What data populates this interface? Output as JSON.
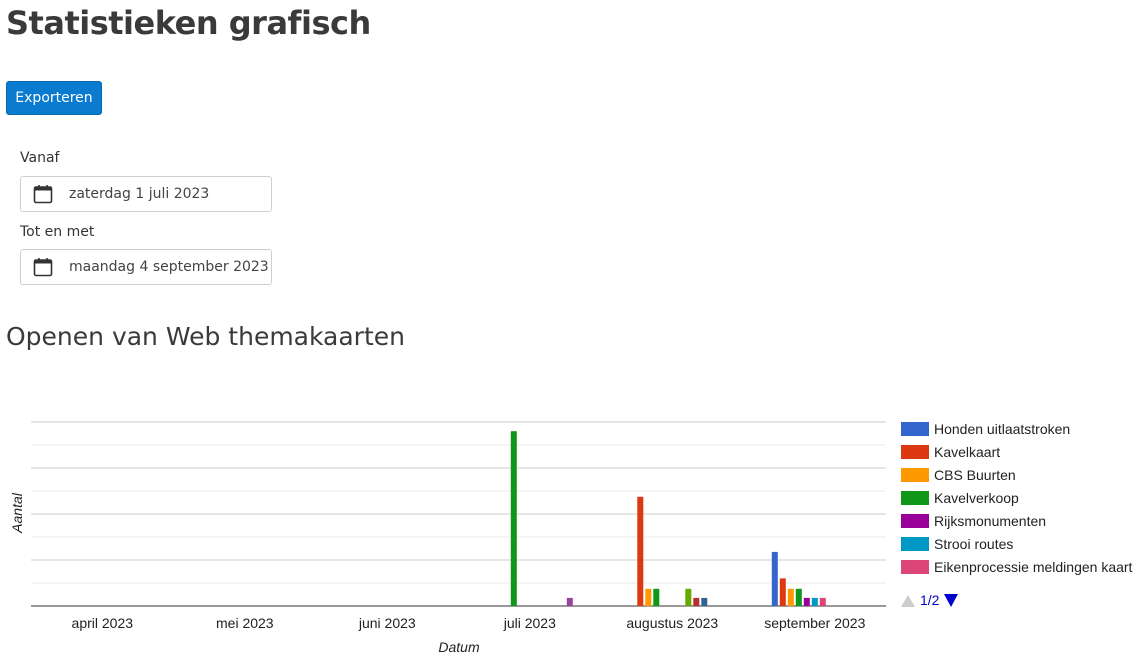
{
  "page": {
    "title": "Statistieken grafisch",
    "export_label": "Exporteren",
    "accent_color": "#0a7bcf"
  },
  "filters": {
    "from_label": "Vanaf",
    "from_value": "zaterdag 1 juli 2023",
    "to_label": "Tot en met",
    "to_value": "maandag 4 september 2023",
    "icon": "calendar-icon"
  },
  "chart_section": {
    "title": "Openen van Web themakaarten"
  },
  "legend_pager": {
    "label": "1/2",
    "prev_icon": "triangle-up-icon",
    "next_icon": "triangle-down-icon"
  },
  "chart_data": {
    "type": "bar",
    "title": "",
    "xlabel": "Datum",
    "ylabel": "Aantal",
    "grid": true,
    "legend_position": "right",
    "categories": [
      "april 2023",
      "mei 2023",
      "juni 2023",
      "juli 2023",
      "augustus 2023",
      "september 2023"
    ],
    "ylim": [
      0,
      80
    ],
    "series": [
      {
        "name": "Honden uitlaatstroken",
        "color": "#3366cc",
        "values": [
          0,
          0,
          0,
          0,
          0,
          23.5
        ]
      },
      {
        "name": "Kavelkaart",
        "color": "#dc3912",
        "values": [
          0,
          0,
          0,
          0,
          47.5,
          12
        ]
      },
      {
        "name": "CBS Buurten",
        "color": "#ff9900",
        "values": [
          0,
          0,
          0,
          0,
          7.5,
          7.5
        ]
      },
      {
        "name": "Kavelverkoop",
        "color": "#109618",
        "values": [
          0,
          0,
          0,
          76,
          7.5,
          7.5
        ]
      },
      {
        "name": "Rijksmonumenten",
        "color": "#990099",
        "values": [
          0,
          0,
          0,
          0,
          0,
          3.5
        ]
      },
      {
        "name": "Strooi routes",
        "color": "#0099c6",
        "values": [
          0,
          0,
          0,
          0,
          0,
          3.5
        ]
      },
      {
        "name": "Eikenprocessie meldingen kaart",
        "color": "#dd4477",
        "values": [
          0,
          0,
          0,
          0,
          0,
          3.5
        ]
      },
      {
        "color": "#66aa00",
        "values": [
          0,
          0,
          0,
          0,
          7.5,
          0
        ]
      },
      {
        "color": "#b82e2e",
        "values": [
          0,
          0,
          0,
          0,
          3.5,
          0
        ]
      },
      {
        "color": "#316395",
        "values": [
          0,
          0,
          0,
          0,
          3.5,
          0
        ]
      },
      {
        "color": "#994499",
        "values": [
          0,
          0,
          0,
          3.5,
          0,
          0
        ]
      }
    ]
  }
}
